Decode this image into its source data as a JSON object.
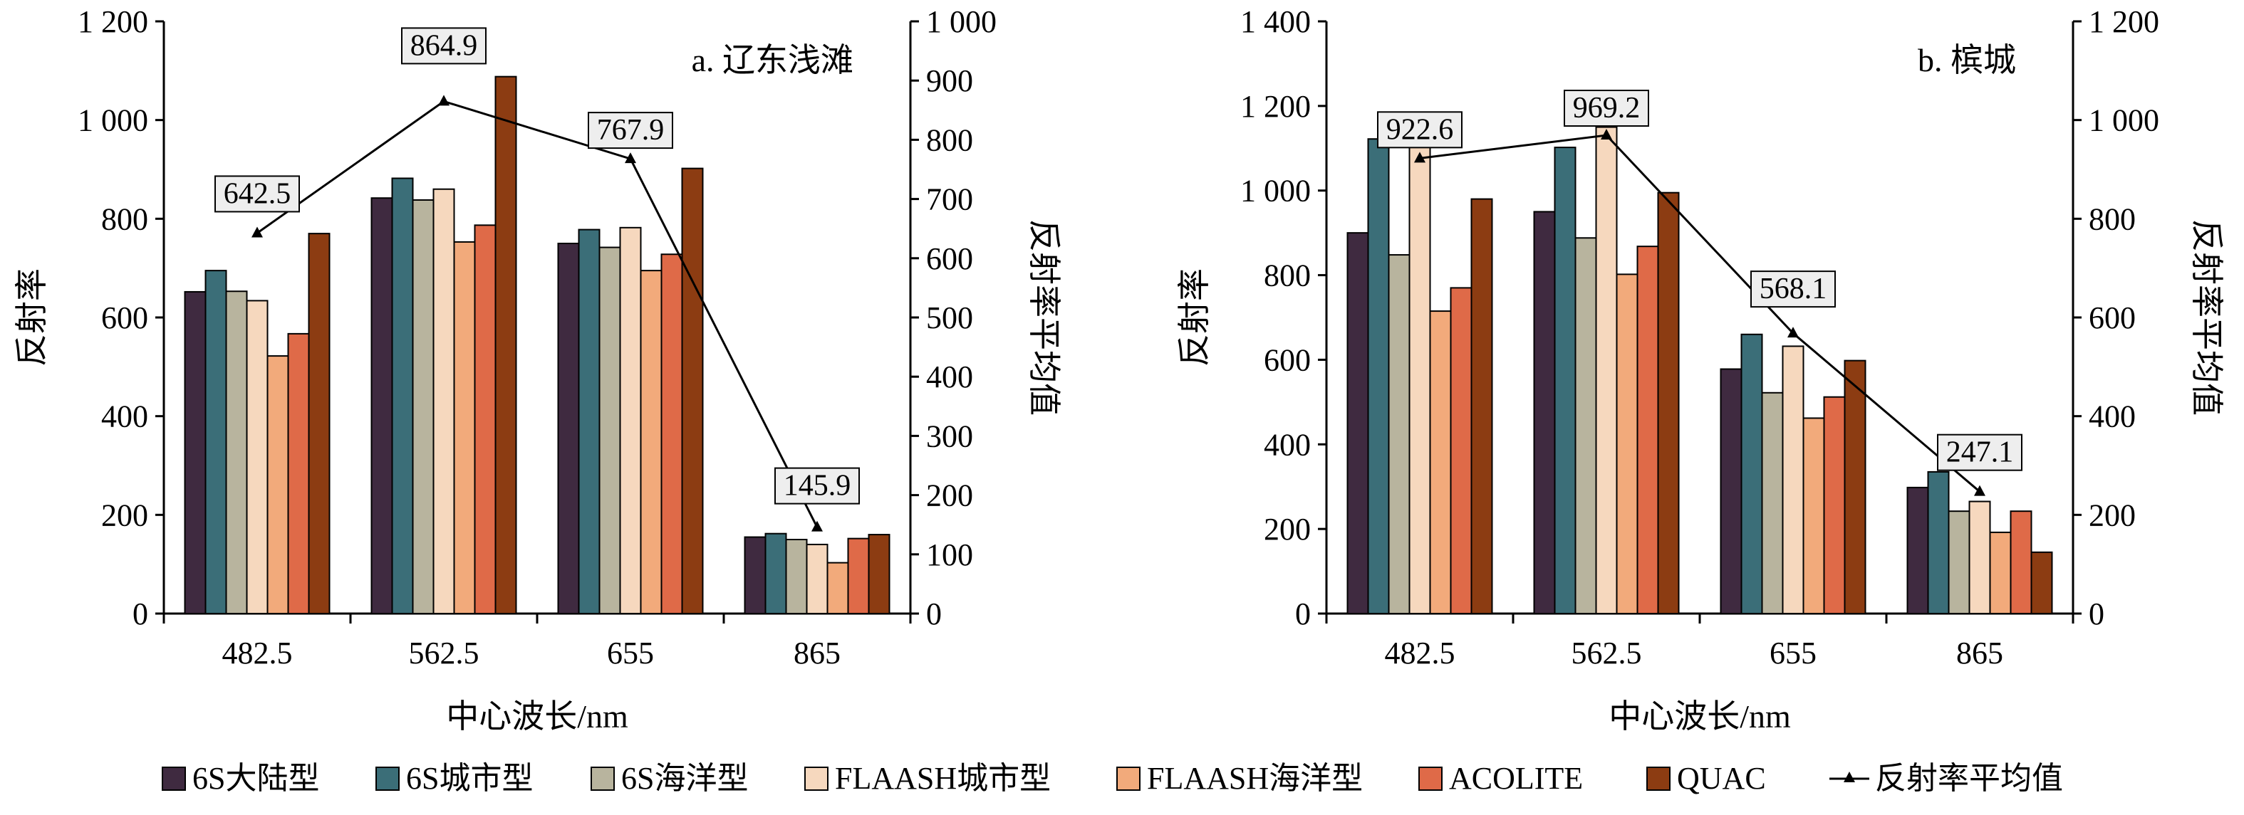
{
  "colors": {
    "6S大陆型": "#3f2a40",
    "6S城市型": "#3b6e78",
    "6S海洋型": "#b8b49e",
    "FLAASH城市型": "#f6d8be",
    "FLAASH海洋型": "#f2aa7b",
    "ACOLITE": "#df6a48",
    "QUAC": "#8c3c12",
    "line": "#000000",
    "label_box": "#eeeeee"
  },
  "legend": {
    "items": [
      "6S大陆型",
      "6S城市型",
      "6S海洋型",
      "FLAASH城市型",
      "FLAASH海洋型",
      "ACOLITE",
      "QUAC"
    ],
    "line_item": "反射率平均值"
  },
  "chart_data": [
    {
      "type": "bar",
      "title": "a. 辽东浅滩",
      "xlabel": "中心波长/nm",
      "ylabel": "反射率",
      "y2label": "反射率平均值",
      "categories": [
        "482.5",
        "562.5",
        "655",
        "865"
      ],
      "ylim": [
        0,
        1200
      ],
      "yticks": [
        0,
        200,
        400,
        600,
        800,
        1000,
        1200
      ],
      "ytick_labels": [
        "0",
        "200",
        "400",
        "600",
        "800",
        "1 000",
        "1 200"
      ],
      "y2lim": [
        0,
        1000
      ],
      "y2ticks": [
        0,
        100,
        200,
        300,
        400,
        500,
        600,
        700,
        800,
        900,
        1000
      ],
      "y2tick_labels": [
        "0",
        "100",
        "200",
        "300",
        "400",
        "500",
        "600",
        "700",
        "800",
        "900",
        "1 000"
      ],
      "series": [
        {
          "name": "6S大陆型",
          "values": [
            652,
            842,
            750,
            155
          ]
        },
        {
          "name": "6S城市型",
          "values": [
            695,
            882,
            778,
            162
          ]
        },
        {
          "name": "6S海洋型",
          "values": [
            653,
            838,
            742,
            150
          ]
        },
        {
          "name": "FLAASH城市型",
          "values": [
            634,
            860,
            782,
            140
          ]
        },
        {
          "name": "FLAASH海洋型",
          "values": [
            522,
            753,
            695,
            103
          ]
        },
        {
          "name": "ACOLITE",
          "values": [
            567,
            787,
            728,
            152
          ]
        },
        {
          "name": "QUAC",
          "values": [
            770,
            1088,
            902,
            160
          ]
        }
      ],
      "line": {
        "name": "反射率平均值",
        "axis": "right",
        "values": [
          642.5,
          864.9,
          767.9,
          145.9
        ],
        "labels": [
          "642.5",
          "864.9",
          "767.9",
          "145.9"
        ]
      }
    },
    {
      "type": "bar",
      "title": "b. 槟城",
      "xlabel": "中心波长/nm",
      "ylabel": "反射率",
      "y2label": "反射率平均值",
      "categories": [
        "482.5",
        "562.5",
        "655",
        "865"
      ],
      "ylim": [
        0,
        1400
      ],
      "yticks": [
        0,
        200,
        400,
        600,
        800,
        1000,
        1200,
        1400
      ],
      "ytick_labels": [
        "0",
        "200",
        "400",
        "600",
        "800",
        "1 000",
        "1 200",
        "1 400"
      ],
      "y2lim": [
        0,
        1200
      ],
      "y2ticks": [
        0,
        200,
        400,
        600,
        800,
        1000,
        1200
      ],
      "y2tick_labels": [
        "0",
        "200",
        "400",
        "600",
        "800",
        "1 000",
        "1 200"
      ],
      "series": [
        {
          "name": "6S大陆型",
          "values": [
            900,
            950,
            578,
            298
          ]
        },
        {
          "name": "6S城市型",
          "values": [
            1122,
            1102,
            660,
            335
          ]
        },
        {
          "name": "6S海洋型",
          "values": [
            848,
            888,
            522,
            242
          ]
        },
        {
          "name": "FLAASH城市型",
          "values": [
            1105,
            1150,
            632,
            265
          ]
        },
        {
          "name": "FLAASH海洋型",
          "values": [
            715,
            802,
            462,
            192
          ]
        },
        {
          "name": "ACOLITE",
          "values": [
            770,
            868,
            512,
            242
          ]
        },
        {
          "name": "QUAC",
          "values": [
            980,
            995,
            598,
            145
          ]
        }
      ],
      "line": {
        "name": "反射率平均值",
        "axis": "right",
        "values": [
          922.6,
          969.2,
          568.1,
          247.1
        ],
        "labels": [
          "922.6",
          "969.2",
          "568.1",
          "247.1"
        ]
      }
    }
  ]
}
